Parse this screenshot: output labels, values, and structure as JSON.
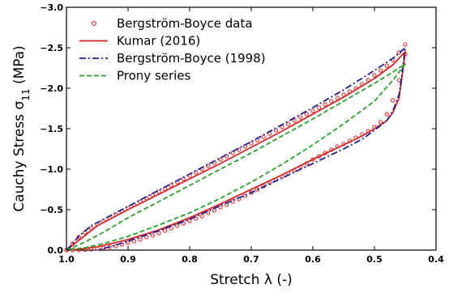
{
  "chart_data": {
    "type": "line",
    "xlabel": "Stretch λ (-)",
    "ylabel": "Cauchy Stress σ11 (MPa)",
    "xlim": [
      1.0,
      0.4
    ],
    "ylim": [
      0.0,
      -3.0
    ],
    "x_reversed": true,
    "y_reversed": true,
    "xticks": [
      1.0,
      0.9,
      0.8,
      0.7,
      0.6,
      0.5,
      0.4
    ],
    "xtick_labels": [
      "1.0",
      "0.9",
      "0.8",
      "0.7",
      "0.6",
      "0.5",
      "0.4"
    ],
    "yticks": [
      0.0,
      -0.5,
      -1.0,
      -1.5,
      -2.0,
      -2.5,
      -3.0
    ],
    "ytick_labels": [
      "0.0",
      "−0.5",
      "−1.0",
      "−1.5",
      "−2.0",
      "−2.5",
      "−3.0"
    ],
    "grid": false,
    "legend_position": "top-left",
    "series": [
      {
        "name": "Bergström-Boyce data",
        "style": "markers",
        "color": "#e31a1c",
        "x": [
          1.0,
          0.99,
          0.98,
          0.97,
          0.96,
          0.95,
          0.94,
          0.93,
          0.92,
          0.91,
          0.9,
          0.89,
          0.88,
          0.87,
          0.86,
          0.85,
          0.84,
          0.83,
          0.82,
          0.81,
          0.8,
          0.79,
          0.78,
          0.77,
          0.76,
          0.75,
          0.74,
          0.73,
          0.72,
          0.71,
          0.7,
          0.69,
          0.68,
          0.67,
          0.66,
          0.65,
          0.64,
          0.63,
          0.62,
          0.61,
          0.6,
          0.59,
          0.58,
          0.57,
          0.56,
          0.55,
          0.54,
          0.53,
          0.52,
          0.51,
          0.5,
          0.49,
          0.48,
          0.47,
          0.46,
          0.45,
          0.45,
          0.46,
          0.47,
          0.48,
          0.49,
          0.5,
          0.51,
          0.52,
          0.53,
          0.54,
          0.55,
          0.56,
          0.57,
          0.58,
          0.59,
          0.6,
          0.61,
          0.62,
          0.63,
          0.64,
          0.65,
          0.66,
          0.67,
          0.68,
          0.69,
          0.7,
          0.71,
          0.72,
          0.73,
          0.74,
          0.75,
          0.76,
          0.77,
          0.78,
          0.79,
          0.8,
          0.81,
          0.82,
          0.83,
          0.84,
          0.85,
          0.86,
          0.87,
          0.88,
          0.89,
          0.9,
          0.91,
          0.92,
          0.93,
          0.94,
          0.95,
          0.96,
          0.97,
          0.98,
          0.99,
          1.0
        ],
        "y": [
          0.0,
          -0.08,
          -0.16,
          -0.22,
          -0.27,
          -0.32,
          -0.36,
          -0.4,
          -0.44,
          -0.48,
          -0.52,
          -0.56,
          -0.6,
          -0.64,
          -0.68,
          -0.72,
          -0.76,
          -0.8,
          -0.84,
          -0.88,
          -0.92,
          -0.96,
          -1.0,
          -1.04,
          -1.08,
          -1.12,
          -1.16,
          -1.2,
          -1.24,
          -1.28,
          -1.32,
          -1.36,
          -1.4,
          -1.44,
          -1.48,
          -1.52,
          -1.56,
          -1.6,
          -1.64,
          -1.68,
          -1.72,
          -1.76,
          -1.8,
          -1.84,
          -1.88,
          -1.92,
          -1.96,
          -2.0,
          -2.05,
          -2.1,
          -2.16,
          -2.22,
          -2.28,
          -2.35,
          -2.44,
          -2.54,
          -2.42,
          -2.1,
          -1.85,
          -1.68,
          -1.58,
          -1.52,
          -1.47,
          -1.43,
          -1.39,
          -1.35,
          -1.31,
          -1.28,
          -1.24,
          -1.2,
          -1.16,
          -1.12,
          -1.07,
          -1.03,
          -0.99,
          -0.95,
          -0.91,
          -0.87,
          -0.83,
          -0.79,
          -0.75,
          -0.71,
          -0.67,
          -0.63,
          -0.6,
          -0.56,
          -0.53,
          -0.49,
          -0.46,
          -0.42,
          -0.39,
          -0.36,
          -0.33,
          -0.3,
          -0.27,
          -0.24,
          -0.21,
          -0.18,
          -0.16,
          -0.13,
          -0.11,
          -0.09,
          -0.07,
          -0.05,
          -0.04,
          -0.03,
          -0.02,
          -0.01,
          -0.005,
          0.0,
          0.0,
          0.0
        ]
      },
      {
        "name": "Kumar (2016)",
        "style": "solid",
        "color": "#d62728",
        "x": [
          1.0,
          0.98,
          0.95,
          0.9,
          0.85,
          0.8,
          0.75,
          0.7,
          0.65,
          0.6,
          0.55,
          0.5,
          0.47,
          0.45,
          0.455,
          0.46,
          0.47,
          0.48,
          0.5,
          0.52,
          0.55,
          0.6,
          0.65,
          0.7,
          0.75,
          0.8,
          0.85,
          0.9,
          0.95,
          0.98,
          1.0
        ],
        "y": [
          0.0,
          -0.12,
          -0.3,
          -0.5,
          -0.69,
          -0.88,
          -1.07,
          -1.27,
          -1.47,
          -1.68,
          -1.89,
          -2.12,
          -2.29,
          -2.45,
          -2.15,
          -1.88,
          -1.7,
          -1.6,
          -1.5,
          -1.41,
          -1.3,
          -1.12,
          -0.93,
          -0.75,
          -0.57,
          -0.4,
          -0.25,
          -0.13,
          -0.04,
          -0.01,
          0.0
        ]
      },
      {
        "name": "Bergström-Boyce (1998)",
        "style": "dashdot",
        "color": "#1f1f8f",
        "x": [
          1.0,
          0.99,
          0.98,
          0.96,
          0.93,
          0.9,
          0.85,
          0.8,
          0.75,
          0.7,
          0.65,
          0.6,
          0.55,
          0.5,
          0.47,
          0.45,
          0.455,
          0.46,
          0.47,
          0.48,
          0.5,
          0.52,
          0.55,
          0.6,
          0.65,
          0.7,
          0.75,
          0.8,
          0.85,
          0.9,
          0.93,
          0.95
        ],
        "y": [
          0.0,
          -0.08,
          -0.17,
          -0.3,
          -0.42,
          -0.54,
          -0.74,
          -0.94,
          -1.14,
          -1.34,
          -1.55,
          -1.76,
          -1.98,
          -2.22,
          -2.37,
          -2.5,
          -2.2,
          -1.92,
          -1.72,
          -1.6,
          -1.48,
          -1.37,
          -1.25,
          -1.07,
          -0.89,
          -0.71,
          -0.55,
          -0.38,
          -0.24,
          -0.11,
          -0.04,
          0.0
        ]
      },
      {
        "name": "Prony series",
        "style": "dashed",
        "color": "#2ca02c",
        "x": [
          1.0,
          0.97,
          0.94,
          0.9,
          0.85,
          0.8,
          0.75,
          0.7,
          0.65,
          0.6,
          0.55,
          0.5,
          0.47,
          0.45,
          0.47,
          0.5,
          0.55,
          0.6,
          0.65,
          0.7,
          0.75,
          0.8,
          0.85,
          0.9,
          0.94,
          0.97,
          1.0
        ],
        "y": [
          0.0,
          -0.1,
          -0.22,
          -0.4,
          -0.6,
          -0.8,
          -1.0,
          -1.2,
          -1.41,
          -1.62,
          -1.84,
          -2.06,
          -2.2,
          -2.3,
          -2.1,
          -1.84,
          -1.56,
          -1.3,
          -1.06,
          -0.84,
          -0.64,
          -0.46,
          -0.31,
          -0.17,
          -0.08,
          -0.03,
          0.0
        ]
      }
    ]
  }
}
